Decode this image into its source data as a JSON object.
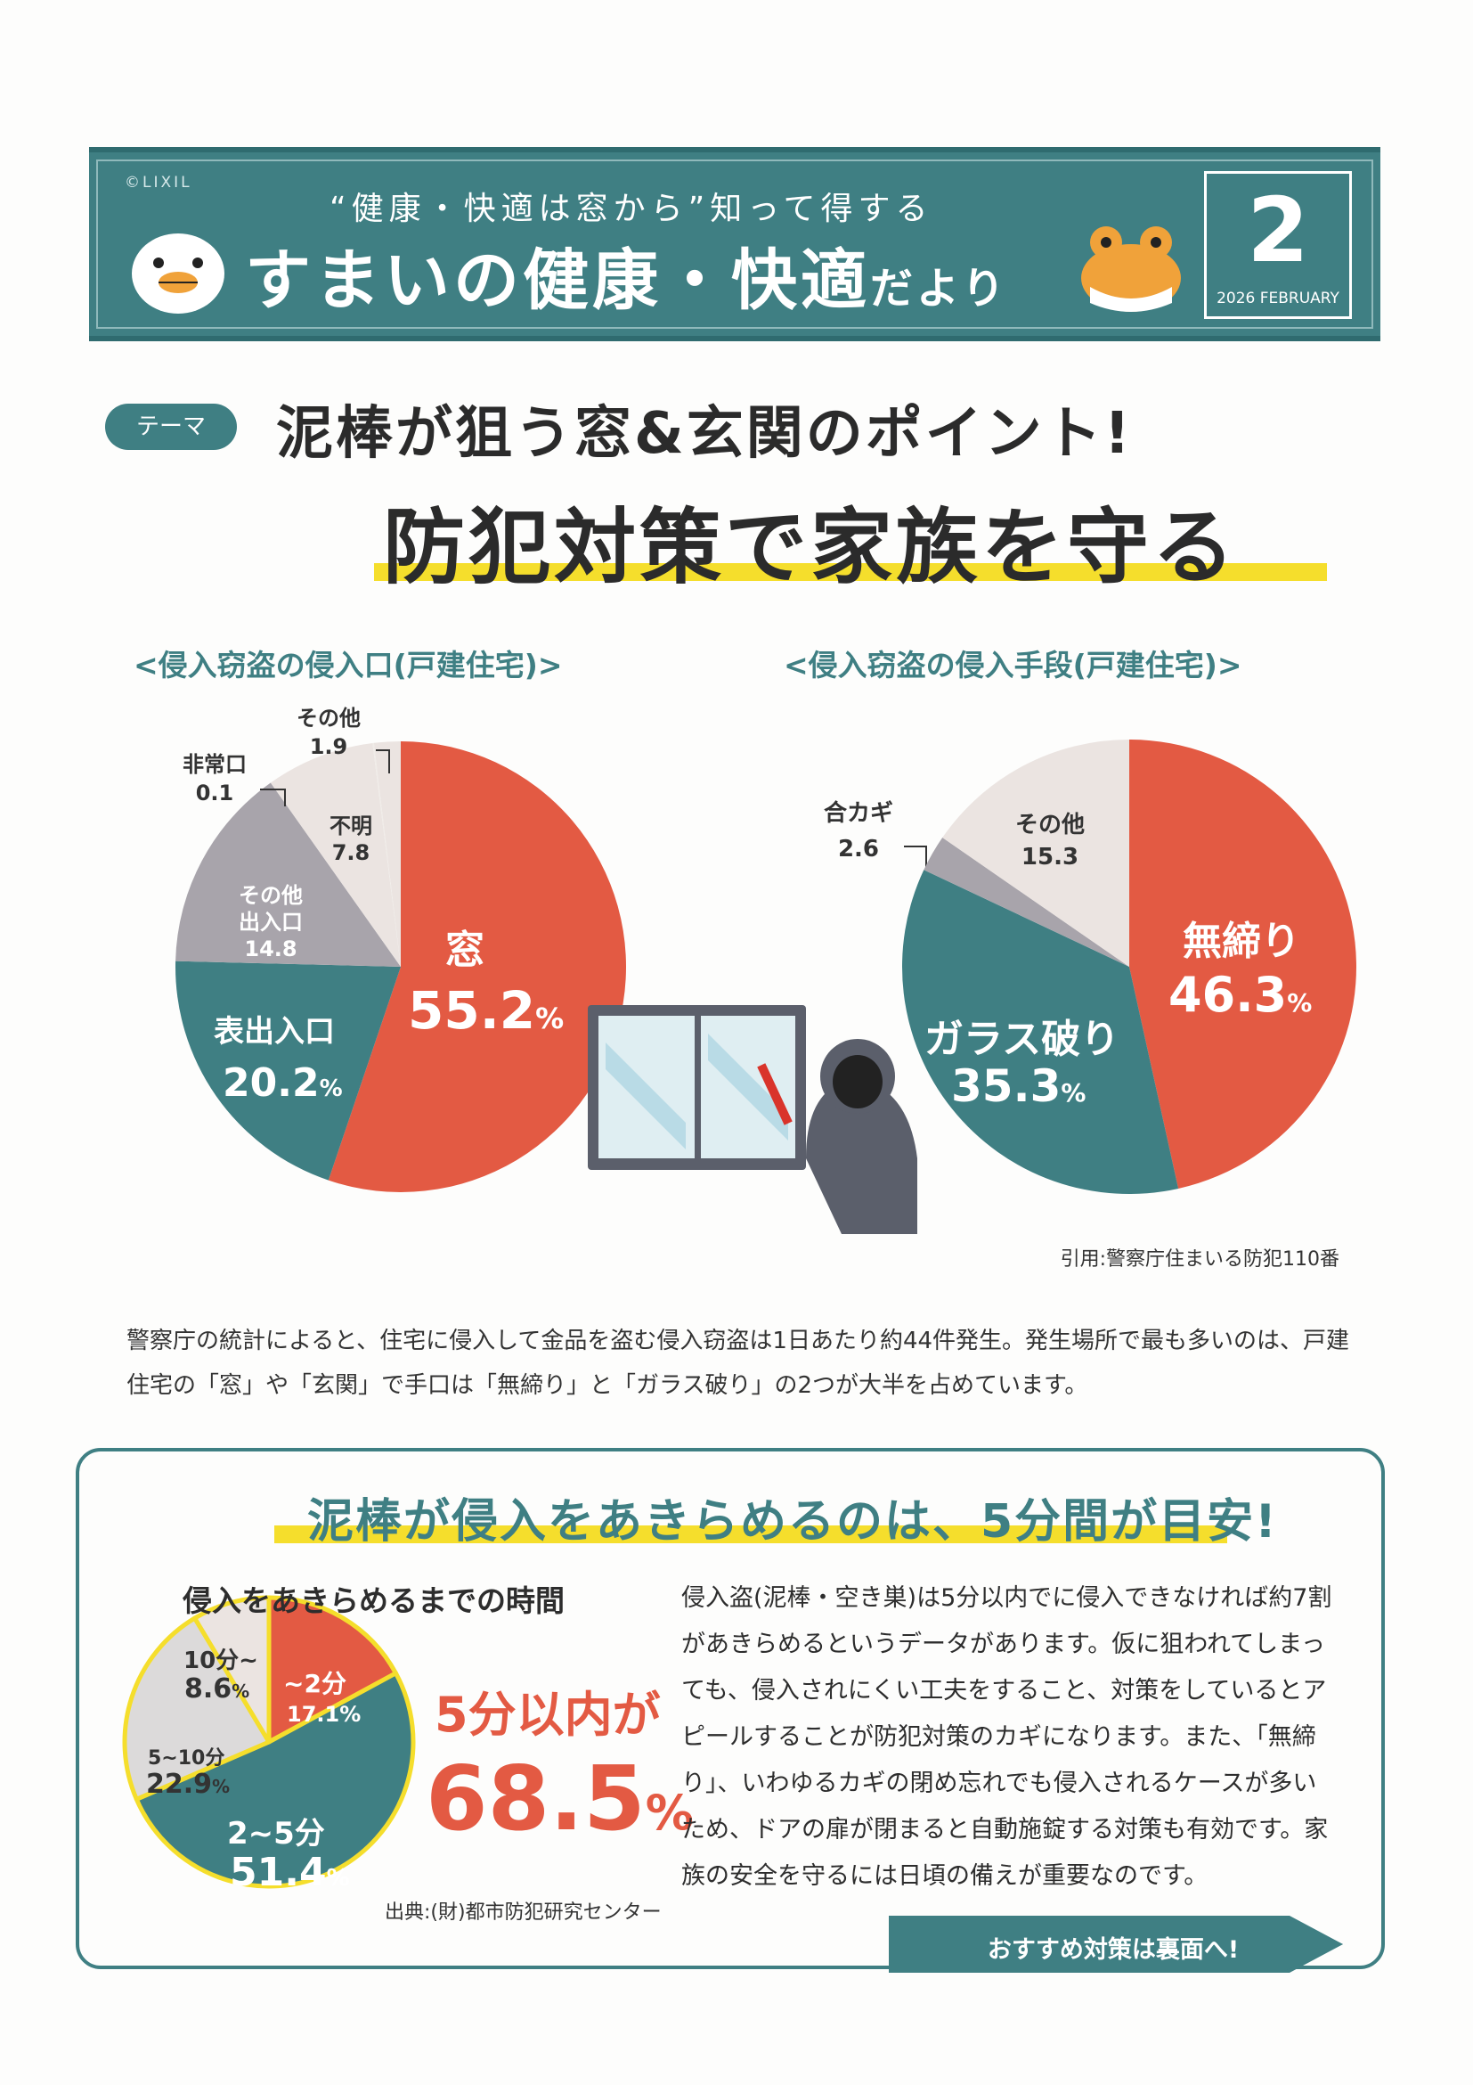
{
  "header": {
    "brand": "©LIXIL",
    "subtitle": "“健康・快適は窓から”知って得する",
    "title_main": "すまいの健康・快適",
    "title_small": "だより",
    "issue_number": "2",
    "issue_date": "2026 FEBRUARY",
    "mascot_left": "bird-mascot-icon",
    "mascot_right": "frog-mascot-icon"
  },
  "theme": {
    "badge": "テーマ",
    "headline1": "泥棒が狙う窓&玄関のポイント!",
    "headline2": "防犯対策で家族を守る"
  },
  "colors": {
    "teal": "#3f7f83",
    "red": "#e35a43",
    "grey": "#a8a4ab",
    "light": "#ebe4e1",
    "yellow": "#f5de2c"
  },
  "chart_data": [
    {
      "type": "pie",
      "title": "<侵入窃盗の侵入口(戸建住宅)>",
      "unit": "%",
      "slices": [
        {
          "label": "窓",
          "value": 55.2
        },
        {
          "label": "表出入口",
          "value": 20.2
        },
        {
          "label": "その他出入口",
          "value": 14.8
        },
        {
          "label": "不明",
          "value": 7.8
        },
        {
          "label": "非常口",
          "value": 0.1
        },
        {
          "label": "その他",
          "value": 1.9
        }
      ]
    },
    {
      "type": "pie",
      "title": "<侵入窃盗の侵入手段(戸建住宅)>",
      "unit": "%",
      "slices": [
        {
          "label": "無締り",
          "value": 46.3
        },
        {
          "label": "ガラス破り",
          "value": 35.3
        },
        {
          "label": "合カギ",
          "value": 2.6
        },
        {
          "label": "その他",
          "value": 15.3
        }
      ]
    },
    {
      "type": "pie",
      "title": "侵入をあきらめるまでの時間",
      "unit": "%",
      "slices": [
        {
          "label": "~2分",
          "value": 17.1
        },
        {
          "label": "2~5分",
          "value": 51.4
        },
        {
          "label": "5~10分",
          "value": 22.9
        },
        {
          "label": "10分~",
          "value": 8.6
        }
      ]
    }
  ],
  "labels": {
    "c1_mado": "窓",
    "c1_mado_v": "55.2",
    "pct": "%",
    "c1_omote": "表出入口",
    "c1_omote_v": "20.2",
    "c1_other_door_1": "その他",
    "c1_other_door_2": "出入口",
    "c1_other_door_v": "14.8",
    "c1_fumei": "不明",
    "c1_fumei_v": "7.8",
    "c1_hijo": "非常口",
    "c1_hijo_v": "0.1",
    "c1_sonota": "その他",
    "c1_sonota_v": "1.9",
    "c2_mujime": "無締り",
    "c2_mujime_v": "46.3",
    "c2_glass": "ガラス破り",
    "c2_glass_v": "35.3",
    "c2_aikagi": "合カギ",
    "c2_aikagi_v": "2.6",
    "c2_sonota": "その他",
    "c2_sonota_v": "15.3",
    "c3_2min": "~2分",
    "c3_2min_v": "17.1",
    "c3_2to5": "2~5分",
    "c3_2to5_v": "51.4",
    "c3_5to10": "5~10分",
    "c3_5to10_v": "22.9",
    "c3_10": "10分~",
    "c3_10_v": "8.6"
  },
  "source_note": "引用:警察庁住まいる防犯110番",
  "body_text": "警察庁の統計によると、住宅に侵入して金品を盗む侵入窃盗は1日あたり約44件発生。発生場所で最も多いのは、戸建住宅の「窓」や「玄関」で手口は「無締り」と「ガラス破り」の2つが大半を占めています。",
  "box": {
    "title": "泥棒が侵入をあきらめるのは、5分間が目安!",
    "time_title": "侵入をあきらめるまでの時間",
    "within_label": "5分以内が",
    "within_value": "68.5",
    "within_pct": "%",
    "paragraph": "侵入盗(泥棒・空き巣)は5分以内でに侵入できなければ約7割があきらめるというデータがあります。仮に狙われてしまっても、侵入されにくい工夫をすること、対策をしているとアピールすることが防犯対策のカギになります。また、「無締り」、いわゆるカギの閉め忘れでも侵入されるケースが多いため、ドアの扉が閉まると自動施錠する対策も有効です。家族の安全を守るには日頃の備えが重要なのです。",
    "source": "出典:(財)都市防犯研究センター",
    "next_label": "おすすめ対策は裏面へ!"
  }
}
